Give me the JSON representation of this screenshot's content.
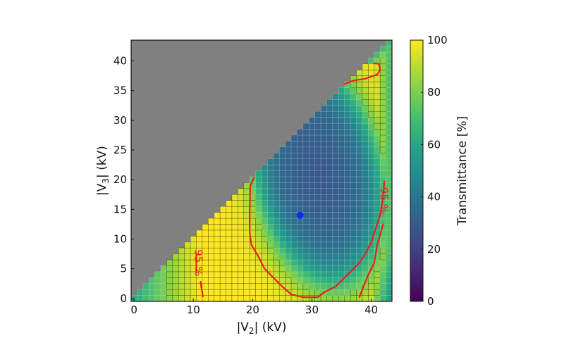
{
  "chart_data": {
    "type": "heatmap",
    "title": "",
    "xlabel": "|V2|  (kV)",
    "ylabel": "|V3|  (kV)",
    "xlabel_parts": {
      "pre": "|V",
      "sub": "2",
      "post": "|  (kV)"
    },
    "ylabel_parts": {
      "pre": "|V",
      "sub": "3",
      "post": "|  (kV)"
    },
    "xlim": [
      -0.5,
      43.5
    ],
    "ylim": [
      -0.5,
      43.5
    ],
    "x_ticks": [
      0,
      10,
      20,
      30,
      40
    ],
    "y_ticks": [
      0,
      5,
      10,
      15,
      20,
      25,
      30,
      35,
      40
    ],
    "grid_step_kV": 1,
    "grid_size": [
      44,
      44
    ],
    "masked_region": "|V3| > |V2| (shown gray)",
    "mask_color": "#808080",
    "colormap": "viridis",
    "colorbar": {
      "label": "Transmittance [%]",
      "range": [
        0,
        100
      ],
      "ticks": [
        0,
        20,
        40,
        60,
        80,
        100
      ]
    },
    "field_model": {
      "description": "Approximate transmittance: ~100% across outer band, dropping to ~25-35% inside a tilted elliptical low-transmission region",
      "high_value": 100,
      "low_value": 27,
      "center": [
        31,
        21
      ],
      "semi_axes": [
        10.5,
        19
      ],
      "tilt_deg": 12,
      "edge_width": 2.2,
      "corner_falloff": {
        "near_origin_min": 62,
        "right_edge_min": 68
      }
    },
    "contours": [
      {
        "level": 95,
        "label": "95 %",
        "color": "#e8201a",
        "segments": [
          [
            [
              20.2,
              20.3
            ],
            [
              19.6,
              19
            ],
            [
              19.5,
              15
            ],
            [
              19.5,
              11
            ],
            [
              19.8,
              9
            ],
            [
              21,
              7
            ],
            [
              22,
              5
            ],
            [
              23.5,
              3.5
            ],
            [
              25,
              2
            ],
            [
              26.5,
              0.7
            ],
            [
              28.5,
              0.2
            ],
            [
              31,
              0.2
            ],
            [
              32,
              1
            ],
            [
              34,
              2
            ],
            [
              36,
              4
            ],
            [
              38,
              6
            ],
            [
              39,
              7.5
            ],
            [
              40,
              9.5
            ],
            [
              40.5,
              11
            ],
            [
              41,
              12.5
            ],
            [
              41.5,
              14
            ],
            [
              42,
              17
            ],
            [
              42.2,
              19.7
            ]
          ],
          [
            [
              10.5,
              7.5
            ],
            [
              10.5,
              4.5
            ]
          ],
          [
            [
              11.2,
              2.8
            ],
            [
              11.6,
              0.3
            ]
          ],
          [
            [
              42,
              12.5
            ],
            [
              41,
              9
            ],
            [
              40.5,
              6
            ],
            [
              39.5,
              4
            ],
            [
              38.5,
              1.5
            ],
            [
              38,
              0.2
            ]
          ],
          [
            [
              35.5,
              36.1
            ],
            [
              37,
              36.7
            ],
            [
              39,
              37
            ],
            [
              41,
              37.7
            ],
            [
              41.5,
              38.5
            ],
            [
              41.3,
              39.5
            ],
            [
              40.5,
              39.6
            ]
          ]
        ],
        "label_positions": [
          [
            10.8,
            6.0,
            90
          ],
          [
            42.1,
            16.5,
            90
          ]
        ]
      }
    ],
    "marker": {
      "x": 28,
      "y": 14,
      "color": "#0a2cff",
      "shape": "circle"
    }
  }
}
